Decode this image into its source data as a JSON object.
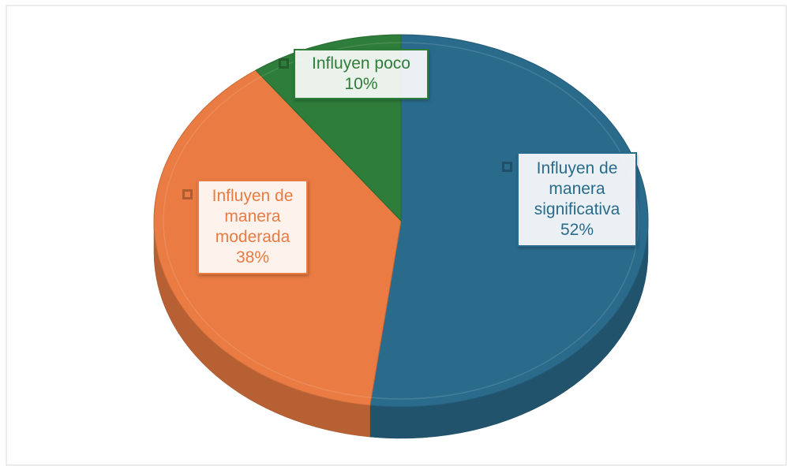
{
  "chart_data": {
    "type": "pie",
    "categories": [
      "Influyen de manera significativa",
      "Influyen de manera moderada",
      "Influyen poco"
    ],
    "values": [
      52,
      38,
      10
    ],
    "value_labels": [
      "52%",
      "38%",
      "10%"
    ],
    "colors": [
      "#2a6b8c",
      "#e97b43",
      "#2e7d3a"
    ]
  }
}
